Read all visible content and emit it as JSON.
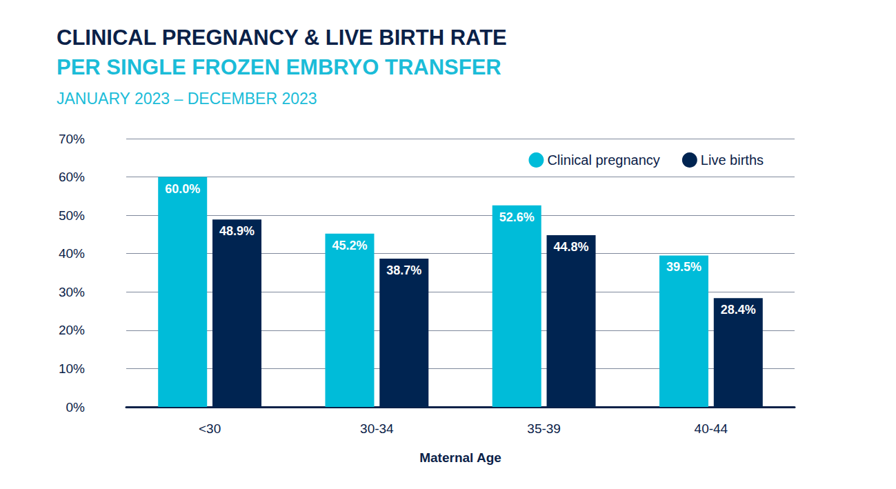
{
  "chart_data": {
    "type": "bar",
    "title": "CLINICAL PREGNANCY & LIVE BIRTH RATE",
    "subtitle": [
      "PER SINGLE FROZEN EMBRYO TRANSFER",
      "JANUARY 2023 – DECEMBER 2023"
    ],
    "x_label": "Maternal Age",
    "categories": [
      "<30",
      "30-34",
      "35-39",
      "40-44"
    ],
    "series": [
      {
        "name": "Clinical pregnancy",
        "color": "#00bcd9",
        "values": [
          60.0,
          45.2,
          52.6,
          39.5
        ],
        "value_labels": [
          "60.0%",
          "45.2%",
          "52.6%",
          "39.5%"
        ]
      },
      {
        "name": "Live births",
        "color": "#002451",
        "values": [
          48.9,
          38.7,
          44.8,
          28.4
        ],
        "value_labels": [
          "48.9%",
          "38.7%",
          "44.8%",
          "28.4%"
        ]
      }
    ],
    "ylim": [
      0,
      70
    ],
    "yticks": [
      {
        "value": 0,
        "label": "0%"
      },
      {
        "value": 10,
        "label": "10%"
      },
      {
        "value": 20,
        "label": "20%"
      },
      {
        "value": 30,
        "label": "30%"
      },
      {
        "value": 40,
        "label": "40%"
      },
      {
        "value": 50,
        "label": "50%"
      },
      {
        "value": 60,
        "label": "60%"
      },
      {
        "value": 70,
        "label": "70%"
      }
    ],
    "grid": true,
    "legend": "top-right",
    "data_labels": true
  }
}
